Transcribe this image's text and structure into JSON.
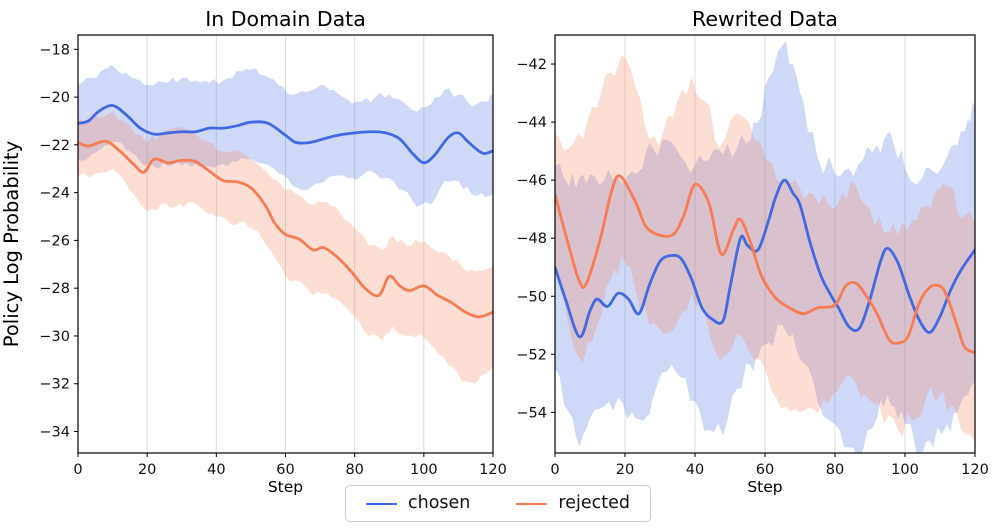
{
  "figure": {
    "background": "#ffffff",
    "grid_color": "#dcdcdc",
    "spine_color": "#000000",
    "text_color": "#111111"
  },
  "legend": {
    "position": "lower center",
    "items": [
      {
        "label": "chosen",
        "color": "#4169e1"
      },
      {
        "label": "rejected",
        "color": "#f87b54"
      }
    ]
  },
  "chart_data": [
    {
      "type": "line",
      "title": "In Domain Data",
      "xlabel": "Step",
      "ylabel": "Policy Log Probability",
      "xlim": [
        0,
        120
      ],
      "ylim": [
        -34.9,
        -17.4
      ],
      "xticks": [
        0,
        20,
        40,
        60,
        80,
        100,
        120
      ],
      "yticks": [
        -18,
        -20,
        -22,
        -24,
        -26,
        -28,
        -30,
        -32,
        -34
      ],
      "grid": "vertical",
      "legend_position": "lower center",
      "series": [
        {
          "name": "chosen",
          "color": "#4169e1",
          "x": [
            0,
            3,
            6,
            10,
            14,
            18,
            22,
            26,
            30,
            34,
            38,
            42,
            46,
            50,
            55,
            60,
            63,
            67,
            71,
            75,
            80,
            85,
            89,
            93,
            97,
            100,
            103,
            107,
            110,
            113,
            117,
            120
          ],
          "y": [
            -21.1,
            -21.0,
            -20.6,
            -20.35,
            -20.75,
            -21.3,
            -21.55,
            -21.5,
            -21.45,
            -21.45,
            -21.3,
            -21.3,
            -21.2,
            -21.05,
            -21.1,
            -21.6,
            -21.9,
            -21.9,
            -21.75,
            -21.6,
            -21.5,
            -21.45,
            -21.5,
            -21.75,
            -22.4,
            -22.75,
            -22.45,
            -21.7,
            -21.5,
            -21.9,
            -22.35,
            -22.25
          ],
          "band_x": [
            0,
            4,
            8,
            10,
            14,
            18,
            22,
            26,
            30,
            34,
            38,
            42,
            46,
            50,
            54,
            58,
            62,
            66,
            70,
            74,
            78,
            82,
            86,
            90,
            94,
            98,
            102,
            106,
            110,
            114,
            118,
            120
          ],
          "band_upper": [
            -19.5,
            -19.2,
            -18.8,
            -18.7,
            -19.0,
            -19.3,
            -19.5,
            -19.4,
            -19.2,
            -19.3,
            -19.4,
            -19.3,
            -18.9,
            -18.85,
            -19.1,
            -19.5,
            -19.9,
            -19.8,
            -19.5,
            -19.7,
            -20.1,
            -20.2,
            -20.0,
            -19.9,
            -20.2,
            -20.6,
            -20.3,
            -19.7,
            -19.9,
            -20.4,
            -20.2,
            -19.9
          ],
          "band_lower": [
            -22.6,
            -22.4,
            -22.0,
            -21.9,
            -22.2,
            -22.7,
            -22.9,
            -22.9,
            -22.85,
            -22.8,
            -22.9,
            -22.8,
            -22.7,
            -22.6,
            -22.8,
            -23.2,
            -23.7,
            -23.9,
            -23.6,
            -23.3,
            -23.4,
            -23.3,
            -23.2,
            -23.4,
            -23.9,
            -24.6,
            -24.5,
            -23.5,
            -23.5,
            -24.1,
            -24.2,
            -24.0
          ]
        },
        {
          "name": "rejected",
          "color": "#f87b54",
          "x": [
            0,
            3,
            8,
            12,
            16,
            19,
            22,
            26,
            30,
            34,
            38,
            42,
            46,
            50,
            54,
            57,
            60,
            64,
            68,
            71,
            75,
            79,
            83,
            87,
            90,
            93,
            96,
            100,
            104,
            108,
            112,
            116,
            120
          ],
          "y": [
            -21.9,
            -22.05,
            -21.85,
            -22.25,
            -22.8,
            -23.15,
            -22.6,
            -22.75,
            -22.65,
            -22.7,
            -23.1,
            -23.5,
            -23.55,
            -23.8,
            -24.5,
            -25.3,
            -25.75,
            -25.95,
            -26.4,
            -26.3,
            -26.7,
            -27.3,
            -28.0,
            -28.3,
            -27.5,
            -27.9,
            -28.1,
            -27.9,
            -28.3,
            -28.6,
            -29.0,
            -29.2,
            -29.0
          ],
          "band_x": [
            0,
            5,
            10,
            15,
            20,
            24,
            28,
            32,
            36,
            40,
            44,
            48,
            52,
            56,
            60,
            64,
            68,
            72,
            76,
            80,
            84,
            88,
            91,
            95,
            99,
            103,
            107,
            111,
            115,
            120
          ],
          "band_upper": [
            -20.9,
            -20.8,
            -20.6,
            -21.2,
            -21.9,
            -21.5,
            -21.3,
            -21.4,
            -21.8,
            -22.2,
            -22.3,
            -22.4,
            -22.8,
            -23.4,
            -23.9,
            -24.1,
            -24.5,
            -24.4,
            -24.9,
            -25.5,
            -26.2,
            -26.4,
            -25.8,
            -26.2,
            -26.1,
            -26.4,
            -26.6,
            -27.1,
            -27.3,
            -27.1
          ],
          "band_lower": [
            -23.3,
            -23.2,
            -23.0,
            -23.9,
            -24.8,
            -24.5,
            -24.6,
            -24.4,
            -24.7,
            -25.0,
            -25.3,
            -25.2,
            -25.6,
            -26.5,
            -27.5,
            -27.7,
            -28.3,
            -28.2,
            -28.6,
            -29.2,
            -30.0,
            -30.2,
            -29.6,
            -30.0,
            -29.9,
            -30.5,
            -31.2,
            -31.9,
            -32.0,
            -31.3
          ]
        }
      ]
    },
    {
      "type": "line",
      "title": "Rewrited Data",
      "xlabel": "Step",
      "ylabel": "",
      "xlim": [
        0,
        120
      ],
      "ylim": [
        -55.4,
        -41.0
      ],
      "xticks": [
        0,
        20,
        40,
        60,
        80,
        100,
        120
      ],
      "yticks": [
        -42,
        -44,
        -46,
        -48,
        -50,
        -52,
        -54
      ],
      "grid": "vertical",
      "legend_position": "lower center",
      "series": [
        {
          "name": "chosen",
          "color": "#4169e1",
          "x": [
            0,
            3,
            7,
            10,
            12,
            15,
            18,
            21,
            24,
            27,
            30,
            33,
            36,
            39,
            42,
            45,
            48,
            50,
            53,
            55,
            58,
            61,
            63,
            65.5,
            68,
            70,
            73,
            76,
            79,
            81,
            84,
            87,
            90,
            93,
            95,
            98,
            101,
            104,
            107,
            110,
            113,
            116,
            120
          ],
          "y": [
            -49.0,
            -50.1,
            -51.4,
            -50.5,
            -50.1,
            -50.35,
            -49.9,
            -50.1,
            -50.6,
            -49.6,
            -48.8,
            -48.6,
            -48.7,
            -49.4,
            -50.4,
            -50.8,
            -50.85,
            -49.7,
            -48.0,
            -48.25,
            -48.4,
            -47.4,
            -46.6,
            -46.0,
            -46.45,
            -46.85,
            -48.2,
            -49.3,
            -50.0,
            -50.4,
            -51.05,
            -51.1,
            -50.1,
            -48.8,
            -48.35,
            -48.85,
            -49.9,
            -50.8,
            -51.25,
            -50.7,
            -49.8,
            -49.1,
            -48.4
          ],
          "band_x": [
            0,
            4,
            7,
            10,
            14,
            18,
            22,
            25,
            28,
            32,
            36,
            40,
            44,
            48,
            52,
            56,
            58,
            61,
            65,
            68,
            71,
            75,
            80,
            84,
            88,
            92,
            95,
            97,
            100,
            105,
            108,
            112,
            115,
            118,
            120
          ],
          "band_upper": [
            -45.5,
            -46.2,
            -45.9,
            -45.8,
            -46.0,
            -45.9,
            -45.7,
            -45.6,
            -44.9,
            -44.6,
            -45.2,
            -45.5,
            -45.3,
            -45.1,
            -44.9,
            -44.6,
            -44.0,
            -42.5,
            -41.35,
            -42.0,
            -43.3,
            -45.2,
            -45.8,
            -45.6,
            -45.3,
            -44.8,
            -44.4,
            -44.9,
            -45.6,
            -45.9,
            -45.7,
            -45.2,
            -44.8,
            -43.9,
            -43.5
          ],
          "band_lower": [
            -52.5,
            -54.0,
            -55.2,
            -54.2,
            -53.8,
            -53.5,
            -54.0,
            -54.3,
            -53.5,
            -52.6,
            -52.8,
            -53.6,
            -54.6,
            -54.8,
            -53.2,
            -52.4,
            -52.1,
            -51.6,
            -51.0,
            -51.3,
            -52.3,
            -53.6,
            -54.4,
            -55.2,
            -55.3,
            -54.2,
            -53.4,
            -53.8,
            -54.4,
            -55.4,
            -55.2,
            -54.4,
            -54.0,
            -53.4,
            -53.0
          ]
        },
        {
          "name": "rejected",
          "color": "#f87b54",
          "x": [
            0,
            4,
            7,
            9,
            13,
            16,
            18.5,
            23,
            26,
            30,
            34,
            37,
            40,
            44,
            47.5,
            51,
            53,
            56,
            59,
            63,
            67,
            71,
            75,
            80,
            83,
            86,
            89,
            92,
            95.5,
            98.5,
            101,
            104,
            107,
            110,
            112,
            115,
            117,
            120
          ],
          "y": [
            -46.5,
            -48.3,
            -49.5,
            -49.55,
            -48.0,
            -46.45,
            -45.85,
            -46.75,
            -47.6,
            -47.9,
            -47.85,
            -47.15,
            -46.15,
            -46.8,
            -48.55,
            -47.7,
            -47.35,
            -48.2,
            -49.3,
            -50.05,
            -50.4,
            -50.6,
            -50.4,
            -50.3,
            -49.65,
            -49.55,
            -50.0,
            -50.6,
            -51.5,
            -51.6,
            -51.35,
            -50.25,
            -49.7,
            -49.65,
            -50.0,
            -51.05,
            -51.75,
            -51.95
          ],
          "band_x": [
            0,
            4,
            8,
            12,
            16,
            19,
            23,
            27,
            31,
            35,
            39,
            43,
            47,
            52,
            57,
            62,
            66,
            70,
            74,
            78,
            82,
            86,
            90,
            94,
            98,
            102,
            106,
            110,
            113,
            116,
            120
          ],
          "band_upper": [
            -44.3,
            -44.9,
            -44.6,
            -43.5,
            -42.3,
            -41.7,
            -42.8,
            -44.6,
            -44.3,
            -43.3,
            -42.4,
            -43.3,
            -44.9,
            -43.7,
            -44.6,
            -45.4,
            -46.0,
            -46.3,
            -46.5,
            -46.8,
            -46.4,
            -46.2,
            -47.0,
            -47.8,
            -47.9,
            -47.4,
            -46.9,
            -46.3,
            -46.2,
            -47.3,
            -47.5
          ],
          "band_lower": [
            -48.9,
            -51.0,
            -52.3,
            -51.0,
            -49.4,
            -48.6,
            -49.8,
            -51.0,
            -51.3,
            -50.9,
            -49.9,
            -50.6,
            -52.2,
            -51.3,
            -52.2,
            -53.3,
            -53.8,
            -54.0,
            -53.9,
            -53.7,
            -53.0,
            -53.0,
            -53.6,
            -54.4,
            -54.6,
            -54.3,
            -53.5,
            -53.4,
            -53.8,
            -54.6,
            -55.0
          ]
        }
      ]
    }
  ]
}
